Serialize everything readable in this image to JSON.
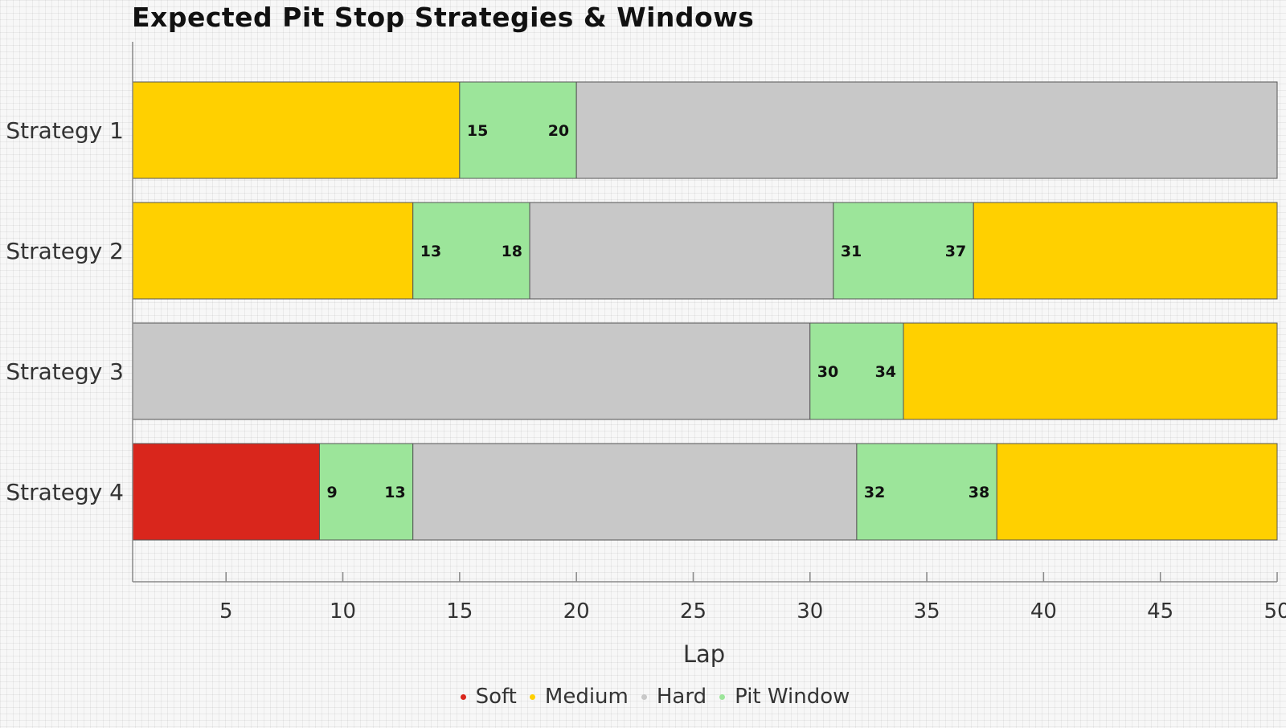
{
  "chart_data": {
    "type": "bar",
    "orientation": "horizontal-stacked",
    "title": "Expected Pit Stop Strategies & Windows",
    "xlabel": "Lap",
    "xlim": [
      1,
      50
    ],
    "xticks": [
      5,
      10,
      15,
      20,
      25,
      30,
      35,
      40,
      45,
      50
    ],
    "grid": false,
    "legend_position": "bottom",
    "colors": {
      "Soft": "#d9261c",
      "Medium": "#ffd000",
      "Hard": "#c8c8c8",
      "Pit Window": "#9ce59a"
    },
    "legend": [
      "Soft",
      "Medium",
      "Hard",
      "Pit Window"
    ],
    "strategies": [
      {
        "name": "Strategy 1",
        "segments": [
          {
            "type": "Medium",
            "start": 1,
            "end": 15
          },
          {
            "type": "Pit Window",
            "start": 15,
            "end": 20
          },
          {
            "type": "Hard",
            "start": 20,
            "end": 50
          }
        ]
      },
      {
        "name": "Strategy 2",
        "segments": [
          {
            "type": "Medium",
            "start": 1,
            "end": 13
          },
          {
            "type": "Pit Window",
            "start": 13,
            "end": 18
          },
          {
            "type": "Hard",
            "start": 18,
            "end": 31
          },
          {
            "type": "Pit Window",
            "start": 31,
            "end": 37
          },
          {
            "type": "Medium",
            "start": 37,
            "end": 50
          }
        ]
      },
      {
        "name": "Strategy 3",
        "segments": [
          {
            "type": "Hard",
            "start": 1,
            "end": 30
          },
          {
            "type": "Pit Window",
            "start": 30,
            "end": 34
          },
          {
            "type": "Medium",
            "start": 34,
            "end": 50
          }
        ]
      },
      {
        "name": "Strategy 4",
        "segments": [
          {
            "type": "Soft",
            "start": 1,
            "end": 9
          },
          {
            "type": "Pit Window",
            "start": 9,
            "end": 13
          },
          {
            "type": "Hard",
            "start": 13,
            "end": 32
          },
          {
            "type": "Pit Window",
            "start": 32,
            "end": 38
          },
          {
            "type": "Medium",
            "start": 38,
            "end": 50
          }
        ]
      }
    ]
  }
}
